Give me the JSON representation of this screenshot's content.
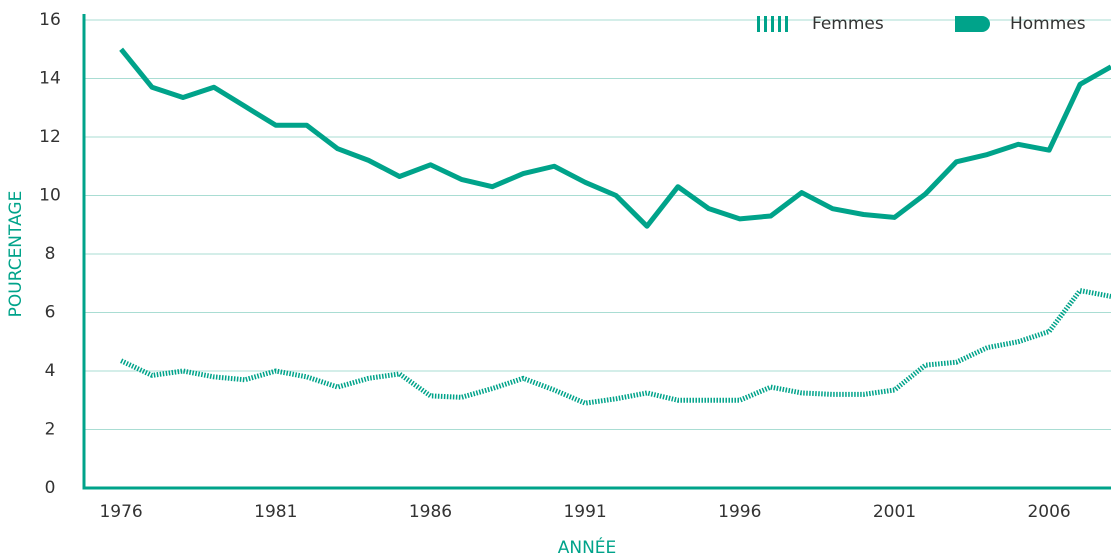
{
  "chart_data": {
    "type": "line",
    "xlabel": "ANNÉE",
    "ylabel": "POURCENTAGE",
    "x": [
      1976,
      1977,
      1978,
      1979,
      1980,
      1981,
      1982,
      1983,
      1984,
      1985,
      1986,
      1987,
      1988,
      1989,
      1990,
      1991,
      1992,
      1993,
      1994,
      1995,
      1996,
      1997,
      1998,
      1999,
      2000,
      2001,
      2002,
      2003,
      2004,
      2005,
      2006,
      2007,
      2008
    ],
    "series": [
      {
        "name": "Femmes",
        "color": "#00a38a",
        "linestyle": "dotted",
        "values": [
          4.35,
          3.85,
          4.0,
          3.8,
          3.7,
          4.0,
          3.8,
          3.45,
          3.75,
          3.9,
          3.15,
          3.1,
          3.4,
          3.75,
          3.35,
          2.9,
          3.05,
          3.25,
          3.0,
          3.0,
          3.0,
          3.45,
          3.25,
          3.2,
          3.2,
          3.35,
          4.2,
          4.3,
          4.8,
          5.0,
          5.35,
          6.75,
          6.55
        ]
      },
      {
        "name": "Hommes",
        "color": "#00a38a",
        "linestyle": "solid",
        "values": [
          15.0,
          13.7,
          13.35,
          13.7,
          13.05,
          12.4,
          12.4,
          11.6,
          11.2,
          10.65,
          11.05,
          10.55,
          10.3,
          10.75,
          11.0,
          10.45,
          10.0,
          8.95,
          10.3,
          9.55,
          9.2,
          9.3,
          10.1,
          9.55,
          9.35,
          9.25,
          10.05,
          11.15,
          11.4,
          11.75,
          11.55,
          13.8,
          14.4
        ]
      }
    ],
    "xlim": [
      1974.8,
      2008
    ],
    "xticks": [
      1976,
      1981,
      1986,
      1991,
      1996,
      2001,
      2006
    ],
    "ylim": [
      0,
      16
    ],
    "yticks": [
      0,
      2,
      4,
      6,
      8,
      10,
      12,
      14,
      16
    ],
    "grid": true,
    "legend": "upper right"
  }
}
